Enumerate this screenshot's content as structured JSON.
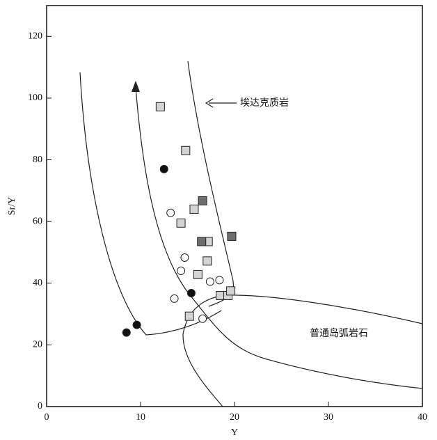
{
  "chart_data": {
    "type": "scatter",
    "x_label": "Y",
    "y_label": "Sr/Y",
    "annotations": [
      "埃达克质岩",
      "普通岛弧岩石"
    ],
    "xlim": [
      0,
      40
    ],
    "xticks": [
      0,
      10,
      20,
      30,
      40
    ],
    "ylim": [
      0,
      130
    ],
    "yticks": [
      0,
      20,
      40,
      60,
      80,
      100,
      120
    ],
    "series": [
      {
        "marker": "circle",
        "color": "#111111",
        "x": [
          12.5,
          8.5,
          9.6,
          15.4
        ],
        "values": [
          77,
          24,
          26.5,
          36.8
        ]
      },
      {
        "marker": "circle",
        "color": "#ffffff",
        "x": [
          13.2,
          14.3,
          14.7,
          13.6,
          17.4,
          18.4,
          16.6
        ],
        "values": [
          62.8,
          44,
          48.3,
          35,
          40.5,
          41,
          28.5
        ]
      },
      {
        "marker": "square",
        "color": "#d4d4d4",
        "x": [
          12.1,
          14.8,
          15.7,
          14.3,
          17.2,
          17.1,
          16.1,
          18.5,
          19.3,
          19.6,
          15.2
        ],
        "values": [
          97.2,
          83,
          64,
          59.5,
          53.5,
          47.2,
          42.8,
          36,
          36,
          37.5,
          29.3
        ]
      },
      {
        "marker": "square",
        "color": "#6e6e6e",
        "x": [
          16.6,
          16.5,
          19.7
        ],
        "values": [
          66.7,
          53.5,
          55.2
        ]
      }
    ]
  }
}
